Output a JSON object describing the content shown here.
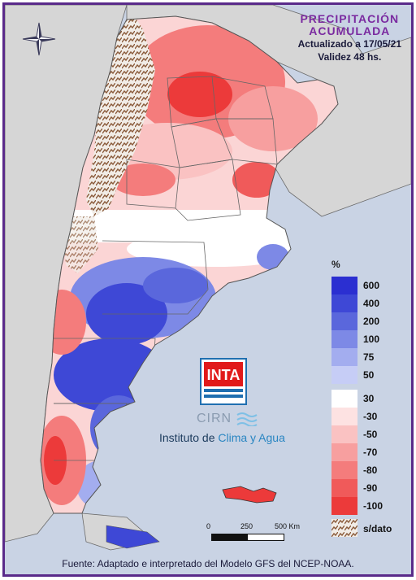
{
  "title": {
    "line1": "PRECIPITACIÓN",
    "line2": "ACUMULADA",
    "updated": "Actualizado a 17/05/21",
    "validity": "Validez 48 hs."
  },
  "legend": {
    "unit": "%",
    "items": [
      {
        "label": "600",
        "color": "#2b2fd1"
      },
      {
        "label": "400",
        "color": "#3e48d6"
      },
      {
        "label": "200",
        "color": "#5a67dc"
      },
      {
        "label": "100",
        "color": "#7d89e6"
      },
      {
        "label": "75",
        "color": "#a3adef"
      },
      {
        "label": "50",
        "color": "#c6cdf6"
      },
      {
        "label": "30",
        "color": "#ffffff"
      },
      {
        "label": "-30",
        "color": "#fde2e2"
      },
      {
        "label": "-50",
        "color": "#fac2c2"
      },
      {
        "label": "-70",
        "color": "#f79f9f"
      },
      {
        "label": "-80",
        "color": "#f47c7c"
      },
      {
        "label": "-90",
        "color": "#f05a5a"
      },
      {
        "label": "-100",
        "color": "#ec3a3a"
      }
    ],
    "nodata_label": "s/dato"
  },
  "scale": {
    "ticks": [
      "0",
      "250",
      "500 Km"
    ]
  },
  "logo": {
    "text": "INTA",
    "cirn": "CIRN",
    "institute_prefix": "Instituto de ",
    "institute_highlight": "Clima y Agua"
  },
  "footer": "Fuente: Adaptado e interpretado del Modelo GFS del NCEP-NOAA.",
  "icons": {
    "compass": "compass-rose-icon"
  }
}
